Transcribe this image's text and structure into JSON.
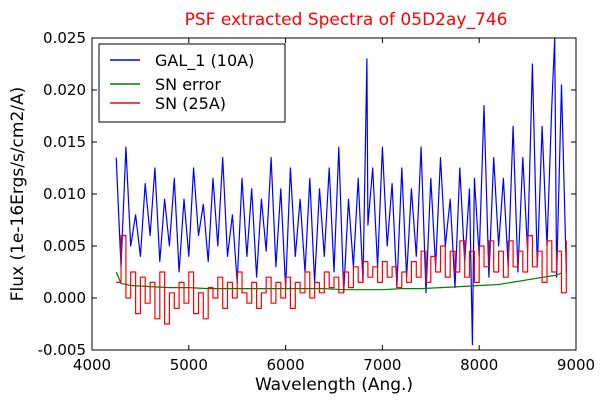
{
  "chart_data": {
    "type": "line",
    "title": "PSF extracted Spectra of 05D2ay_746",
    "title_color": "#ff0000",
    "xlabel": "Wavelength (Ang.)",
    "ylabel": "Flux (1e-16Ergs/s/cm2/A)",
    "xlim": [
      4000,
      9000
    ],
    "ylim": [
      -0.005,
      0.025
    ],
    "x_ticks": [
      4000,
      5000,
      6000,
      7000,
      8000,
      9000
    ],
    "x_tick_labels": [
      "4000",
      "5000",
      "6000",
      "7000",
      "8000",
      "9000"
    ],
    "y_ticks": [
      -0.005,
      0.0,
      0.005,
      0.01,
      0.015,
      0.02,
      0.025
    ],
    "y_tick_labels": [
      "-0.005",
      "0.000",
      "0.005",
      "0.010",
      "0.015",
      "0.020",
      "0.025"
    ],
    "grid": false,
    "legend_position": "top-left",
    "series": [
      {
        "name": "GAL_1 (10A)",
        "color": "#0000ff",
        "x": [
          4250,
          4300,
          4350,
          4400,
          4450,
          4500,
          4550,
          4600,
          4650,
          4700,
          4750,
          4800,
          4850,
          4900,
          4950,
          5000,
          5050,
          5100,
          5150,
          5200,
          5250,
          5300,
          5350,
          5400,
          5450,
          5500,
          5550,
          5600,
          5650,
          5700,
          5750,
          5800,
          5850,
          5900,
          5950,
          6000,
          6050,
          6100,
          6150,
          6200,
          6250,
          6300,
          6350,
          6400,
          6450,
          6500,
          6550,
          6600,
          6650,
          6700,
          6750,
          6800,
          6840,
          6850,
          6900,
          6950,
          7000,
          7050,
          7100,
          7150,
          7200,
          7250,
          7300,
          7350,
          7400,
          7450,
          7500,
          7550,
          7600,
          7650,
          7700,
          7750,
          7800,
          7850,
          7900,
          7930,
          7950,
          8000,
          8050,
          8100,
          8150,
          8200,
          8250,
          8300,
          8350,
          8400,
          8450,
          8500,
          8550,
          8600,
          8650,
          8700,
          8750,
          8780,
          8800,
          8850,
          8900
        ],
        "y": [
          0.0135,
          0.003,
          0.0145,
          0.005,
          0.008,
          0.004,
          0.011,
          0.006,
          0.0125,
          0.0035,
          0.0095,
          0.005,
          0.0115,
          0.0025,
          0.0095,
          0.004,
          0.0125,
          0.006,
          0.009,
          0.0035,
          0.0115,
          0.005,
          0.0135,
          0.004,
          0.008,
          0.0015,
          0.0115,
          0.004,
          0.0105,
          0.002,
          0.0095,
          0.0045,
          0.0135,
          0.003,
          0.0105,
          0.001,
          0.0125,
          0.004,
          0.0095,
          0.0025,
          0.0115,
          0.0015,
          0.0105,
          0.004,
          0.0125,
          0.0025,
          0.0145,
          0.0005,
          0.0095,
          0.003,
          0.0115,
          0.0015,
          0.023,
          0.007,
          0.0125,
          0.003,
          0.0145,
          0.005,
          0.011,
          0.001,
          0.0125,
          0.002,
          0.0105,
          0.004,
          0.0145,
          0.0005,
          0.0115,
          0.003,
          0.0135,
          0.005,
          0.0095,
          0.001,
          0.0125,
          0.0035,
          0.0105,
          -0.0045,
          0.0115,
          0.004,
          0.0185,
          0.002,
          0.0135,
          0.005,
          0.0115,
          0.003,
          0.0165,
          0.0025,
          0.0135,
          0.0045,
          0.0225,
          0.003,
          0.0165,
          0.005,
          0.0185,
          0.025,
          0.002,
          0.0205,
          0.0025
        ]
      },
      {
        "name": "SN error",
        "color": "#008000",
        "x": [
          4250,
          4300,
          4400,
          4600,
          4800,
          5000,
          5200,
          5400,
          5600,
          5800,
          6000,
          6200,
          6400,
          6600,
          6800,
          7000,
          7200,
          7400,
          7600,
          7800,
          8000,
          8200,
          8400,
          8600,
          8800,
          8850
        ],
        "y": [
          0.0025,
          0.0014,
          0.0012,
          0.0011,
          0.001,
          0.001,
          0.0009,
          0.0009,
          0.0009,
          0.0009,
          0.0009,
          0.0009,
          0.0009,
          0.0008,
          0.0008,
          0.0008,
          0.0009,
          0.0009,
          0.001,
          0.0011,
          0.0012,
          0.0013,
          0.0016,
          0.0019,
          0.0022,
          0.0024
        ]
      },
      {
        "name": "SN (25A)",
        "color": "#ff0000",
        "x": [
          4250,
          4300,
          4350,
          4400,
          4450,
          4500,
          4550,
          4600,
          4650,
          4700,
          4750,
          4800,
          4850,
          4900,
          4950,
          5000,
          5050,
          5100,
          5150,
          5200,
          5250,
          5300,
          5350,
          5400,
          5450,
          5500,
          5550,
          5600,
          5650,
          5700,
          5750,
          5800,
          5850,
          5900,
          5950,
          6000,
          6050,
          6100,
          6150,
          6200,
          6250,
          6300,
          6350,
          6400,
          6450,
          6500,
          6550,
          6600,
          6650,
          6700,
          6750,
          6800,
          6850,
          6900,
          6950,
          7000,
          7050,
          7100,
          7150,
          7200,
          7250,
          7300,
          7350,
          7400,
          7450,
          7500,
          7550,
          7600,
          7650,
          7700,
          7750,
          7800,
          7850,
          7900,
          7950,
          8000,
          8050,
          8100,
          8150,
          8200,
          8250,
          8300,
          8350,
          8400,
          8450,
          8500,
          8550,
          8600,
          8650,
          8700,
          8750,
          8800,
          8850,
          8900
        ],
        "y": [
          0.0015,
          0.006,
          0.0,
          0.0025,
          -0.0015,
          0.002,
          -0.0005,
          0.0015,
          -0.002,
          0.0025,
          -0.0025,
          0.0005,
          -0.001,
          0.0015,
          -0.0005,
          0.0025,
          -0.0015,
          0.0005,
          -0.002,
          0.001,
          0.0,
          0.002,
          -0.001,
          0.0015,
          0.0,
          0.0025,
          0.0005,
          -0.0005,
          0.0015,
          -0.001,
          0.0005,
          0.002,
          -0.0005,
          0.0015,
          0.0,
          0.002,
          -0.001,
          0.0015,
          0.0005,
          0.0025,
          0.0,
          0.0015,
          0.0005,
          0.0025,
          0.001,
          0.002,
          0.0005,
          0.0025,
          0.001,
          0.003,
          0.0015,
          0.0035,
          0.002,
          0.003,
          0.0015,
          0.0035,
          0.002,
          0.003,
          0.001,
          0.0025,
          0.0015,
          0.0035,
          0.002,
          0.0045,
          0.0015,
          0.004,
          0.0025,
          0.005,
          0.002,
          0.0045,
          0.0025,
          0.0055,
          0.002,
          0.0045,
          0.0015,
          0.005,
          0.003,
          0.0055,
          0.0025,
          0.0045,
          0.002,
          0.0055,
          0.003,
          0.0045,
          0.0025,
          0.006,
          0.003,
          0.0045,
          0.0015,
          0.0055,
          0.0025,
          0.0045,
          0.0005,
          0.0055
        ]
      }
    ]
  }
}
